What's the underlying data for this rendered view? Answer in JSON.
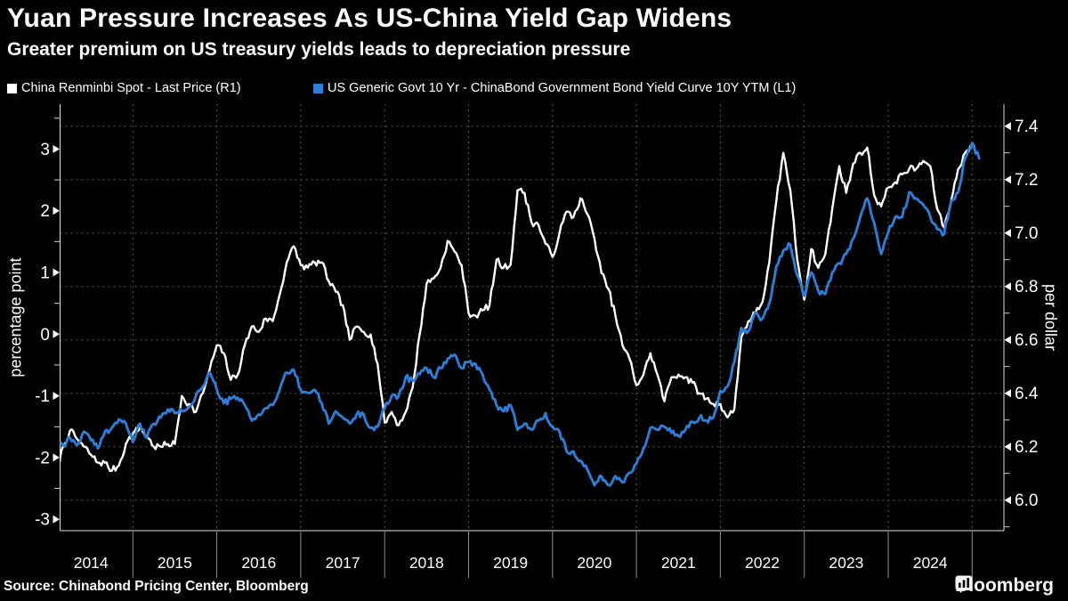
{
  "header": {
    "title": "Yuan Pressure Increases As US-China Yield Gap Widens",
    "subtitle": "Greater premium on US treasury yields leads to depreciation pressure"
  },
  "legend": [
    {
      "label": "China Renminbi Spot - Last Price (R1)",
      "color": "#ffffff"
    },
    {
      "label": "US Generic Govt 10 Yr - ChinaBond Government Bond Yield Curve 10Y YTM (L1)",
      "color": "#2e7dd7"
    }
  ],
  "chart_data": {
    "type": "line",
    "title": "Yuan Pressure Increases As US-China Yield Gap Widens",
    "subtitle": "Greater premium on US treasury yields leads to depreciation pressure",
    "x_start": "2014-01",
    "x_end": "2025-02",
    "x_frequency": "monthly",
    "x_tick_labels": [
      "2014",
      "2015",
      "2016",
      "2017",
      "2018",
      "2019",
      "2020",
      "2021",
      "2022",
      "2023",
      "2024"
    ],
    "left_axis": {
      "label": "percentage point",
      "tick_labels": [
        "3",
        "2",
        "1",
        "0",
        "-1",
        "-2",
        "-3"
      ],
      "minor_tick_step": 0.5,
      "range_drawn": [
        -3.2,
        3.72
      ]
    },
    "right_axis": {
      "label": "per dollar",
      "tick_labels": [
        "7.4",
        "7.2",
        "7.0",
        "6.8",
        "6.6",
        "6.4",
        "6.2",
        "6.0"
      ],
      "minor_tick_step": 0.1,
      "range_drawn": [
        5.89,
        7.48
      ]
    },
    "grid": {
      "horizontal": "at right-axis ticks, dashed",
      "vertical": "at year boundaries, dashed"
    },
    "series": [
      {
        "name": "China Renminbi Spot - Last Price",
        "axis": "R1",
        "color": "#ffffff",
        "values": [
          6.05,
          6.1,
          6.2,
          6.26,
          6.23,
          6.2,
          6.17,
          6.14,
          6.14,
          6.11,
          6.13,
          6.21,
          6.25,
          6.27,
          6.24,
          6.2,
          6.2,
          6.21,
          6.21,
          6.39,
          6.36,
          6.33,
          6.4,
          6.49,
          6.58,
          6.55,
          6.45,
          6.47,
          6.58,
          6.65,
          6.63,
          6.68,
          6.67,
          6.77,
          6.89,
          6.95,
          6.88,
          6.87,
          6.89,
          6.89,
          6.82,
          6.78,
          6.73,
          6.6,
          6.65,
          6.63,
          6.62,
          6.51,
          6.29,
          6.33,
          6.28,
          6.33,
          6.42,
          6.62,
          6.81,
          6.83,
          6.87,
          6.97,
          6.93,
          6.88,
          6.7,
          6.69,
          6.71,
          6.73,
          6.9,
          6.87,
          6.88,
          7.16,
          7.15,
          7.04,
          7.03,
          6.96,
          6.91,
          7.0,
          7.08,
          7.06,
          7.13,
          7.07,
          6.98,
          6.85,
          6.79,
          6.69,
          6.58,
          6.53,
          6.43,
          6.47,
          6.55,
          6.47,
          6.37,
          6.46,
          6.47,
          6.46,
          6.44,
          6.4,
          6.38,
          6.36,
          6.36,
          6.31,
          6.34,
          6.61,
          6.67,
          6.7,
          6.74,
          6.89,
          7.12,
          7.3,
          7.16,
          6.9,
          6.75,
          6.94,
          6.87,
          6.92,
          7.09,
          7.25,
          7.15,
          7.26,
          7.3,
          7.32,
          7.14,
          7.1,
          7.17,
          7.19,
          7.22,
          7.24,
          7.24,
          7.27,
          7.25,
          7.09,
          7.02,
          7.12,
          7.24,
          7.3,
          7.33,
          7.28
        ]
      },
      {
        "name": "US Generic Govt 10 Yr - ChinaBond Government Bond Yield Curve 10Y YTM",
        "axis": "L1",
        "color": "#2e7dd7",
        "values": [
          -1.6,
          -1.72,
          -1.8,
          -1.68,
          -1.8,
          -1.58,
          -1.72,
          -1.85,
          -1.58,
          -1.52,
          -1.38,
          -1.45,
          -1.75,
          -1.45,
          -1.68,
          -1.45,
          -1.35,
          -1.22,
          -1.28,
          -1.25,
          -1.18,
          -1.0,
          -0.85,
          -0.62,
          -0.9,
          -1.12,
          -1.05,
          -1.03,
          -1.15,
          -1.4,
          -1.3,
          -1.2,
          -1.15,
          -0.9,
          -0.62,
          -0.58,
          -0.9,
          -0.95,
          -0.9,
          -1.12,
          -1.45,
          -1.25,
          -1.35,
          -1.45,
          -1.3,
          -1.3,
          -1.52,
          -1.5,
          -1.2,
          -1.0,
          -1.0,
          -0.7,
          -0.75,
          -0.65,
          -0.55,
          -0.7,
          -0.55,
          -0.4,
          -0.33,
          -0.55,
          -0.45,
          -0.48,
          -0.65,
          -0.9,
          -1.15,
          -1.25,
          -1.15,
          -1.55,
          -1.45,
          -1.55,
          -1.4,
          -1.28,
          -1.5,
          -1.58,
          -1.9,
          -1.9,
          -2.05,
          -2.2,
          -2.45,
          -2.3,
          -2.45,
          -2.3,
          -2.4,
          -2.25,
          -2.1,
          -1.85,
          -1.52,
          -1.55,
          -1.5,
          -1.6,
          -1.65,
          -1.55,
          -1.42,
          -1.35,
          -1.4,
          -1.35,
          -0.92,
          -0.85,
          -0.45,
          0.1,
          0.05,
          0.35,
          0.25,
          0.5,
          1.1,
          1.35,
          1.45,
          0.95,
          0.62,
          1.0,
          0.7,
          0.65,
          1.0,
          1.15,
          1.3,
          1.55,
          1.9,
          2.2,
          1.8,
          1.3,
          1.65,
          1.9,
          1.9,
          2.3,
          2.2,
          2.1,
          1.9,
          1.7,
          1.62,
          2.15,
          2.3,
          2.85,
          3.1,
          2.85
        ]
      }
    ]
  },
  "footer": {
    "source": "Source: Chinabond Pricing Center, Bloomberg",
    "logo_text": "Bloomberg"
  }
}
